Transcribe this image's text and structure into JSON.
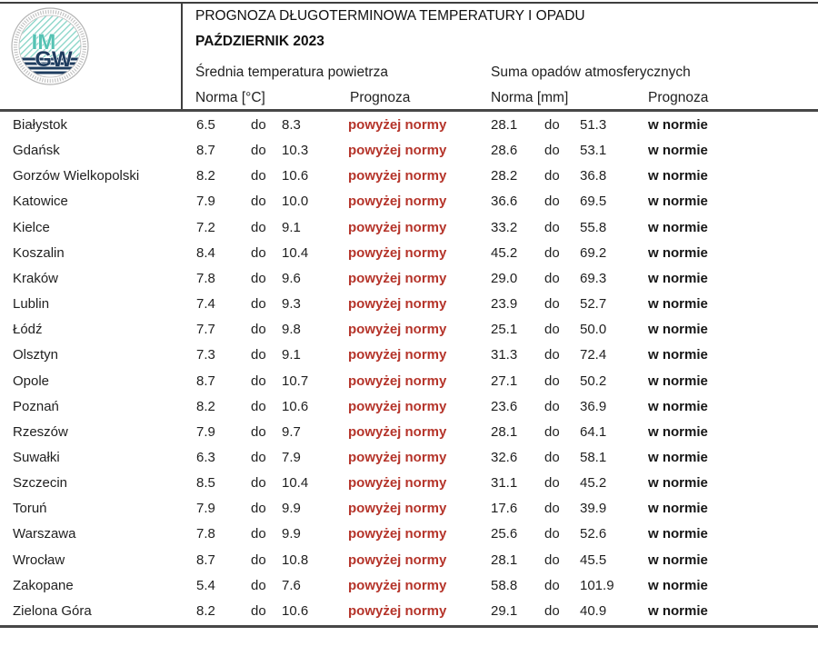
{
  "header": {
    "title": "PROGNOZA DŁUGOTERMINOWA TEMPERATURY I OPADU",
    "month": "PAŹDZIERNIK 2023",
    "temp_section": "Średnia temperatura powietrza",
    "precip_section": "Suma opadów atmosferycznych",
    "temp_norm_label": "Norma [°C]",
    "temp_forecast_label": "Prognoza",
    "precip_norm_label": "Norma [mm]",
    "precip_forecast_label": "Prognoza"
  },
  "logo": {
    "im": "IM",
    "gw": "GW"
  },
  "colors": {
    "forecast_above_red": "#b5342a",
    "text": "#1f1f1f",
    "rule": "#3e3e3e",
    "logo_teal": "#7fd0c2",
    "logo_navy": "#1e3c5f"
  },
  "table": {
    "do_word": "do",
    "rows": [
      {
        "city": "Białystok",
        "t_low": "6.5",
        "t_high": "8.3",
        "t_prog": "powyżej normy",
        "p_low": "28.1",
        "p_high": "51.3",
        "p_prog": "w normie"
      },
      {
        "city": "Gdańsk",
        "t_low": "8.7",
        "t_high": "10.3",
        "t_prog": "powyżej normy",
        "p_low": "28.6",
        "p_high": "53.1",
        "p_prog": "w normie"
      },
      {
        "city": "Gorzów Wielkopolski",
        "t_low": "8.2",
        "t_high": "10.6",
        "t_prog": "powyżej normy",
        "p_low": "28.2",
        "p_high": "36.8",
        "p_prog": "w normie"
      },
      {
        "city": "Katowice",
        "t_low": "7.9",
        "t_high": "10.0",
        "t_prog": "powyżej normy",
        "p_low": "36.6",
        "p_high": "69.5",
        "p_prog": "w normie"
      },
      {
        "city": "Kielce",
        "t_low": "7.2",
        "t_high": "9.1",
        "t_prog": "powyżej normy",
        "p_low": "33.2",
        "p_high": "55.8",
        "p_prog": "w normie"
      },
      {
        "city": "Koszalin",
        "t_low": "8.4",
        "t_high": "10.4",
        "t_prog": "powyżej normy",
        "p_low": "45.2",
        "p_high": "69.2",
        "p_prog": "w normie"
      },
      {
        "city": "Kraków",
        "t_low": "7.8",
        "t_high": "9.6",
        "t_prog": "powyżej normy",
        "p_low": "29.0",
        "p_high": "69.3",
        "p_prog": "w normie"
      },
      {
        "city": "Lublin",
        "t_low": "7.4",
        "t_high": "9.3",
        "t_prog": "powyżej normy",
        "p_low": "23.9",
        "p_high": "52.7",
        "p_prog": "w normie"
      },
      {
        "city": "Łódź",
        "t_low": "7.7",
        "t_high": "9.8",
        "t_prog": "powyżej normy",
        "p_low": "25.1",
        "p_high": "50.0",
        "p_prog": "w normie"
      },
      {
        "city": "Olsztyn",
        "t_low": "7.3",
        "t_high": "9.1",
        "t_prog": "powyżej normy",
        "p_low": "31.3",
        "p_high": "72.4",
        "p_prog": "w normie"
      },
      {
        "city": "Opole",
        "t_low": "8.7",
        "t_high": "10.7",
        "t_prog": "powyżej normy",
        "p_low": "27.1",
        "p_high": "50.2",
        "p_prog": "w normie"
      },
      {
        "city": "Poznań",
        "t_low": "8.2",
        "t_high": "10.6",
        "t_prog": "powyżej normy",
        "p_low": "23.6",
        "p_high": "36.9",
        "p_prog": "w normie"
      },
      {
        "city": "Rzeszów",
        "t_low": "7.9",
        "t_high": "9.7",
        "t_prog": "powyżej normy",
        "p_low": "28.1",
        "p_high": "64.1",
        "p_prog": "w normie"
      },
      {
        "city": "Suwałki",
        "t_low": "6.3",
        "t_high": "7.9",
        "t_prog": "powyżej normy",
        "p_low": "32.6",
        "p_high": "58.1",
        "p_prog": "w normie"
      },
      {
        "city": "Szczecin",
        "t_low": "8.5",
        "t_high": "10.4",
        "t_prog": "powyżej normy",
        "p_low": "31.1",
        "p_high": "45.2",
        "p_prog": "w normie"
      },
      {
        "city": "Toruń",
        "t_low": "7.9",
        "t_high": "9.9",
        "t_prog": "powyżej normy",
        "p_low": "17.6",
        "p_high": "39.9",
        "p_prog": "w normie"
      },
      {
        "city": "Warszawa",
        "t_low": "7.8",
        "t_high": "9.9",
        "t_prog": "powyżej normy",
        "p_low": "25.6",
        "p_high": "52.6",
        "p_prog": "w normie"
      },
      {
        "city": "Wrocław",
        "t_low": "8.7",
        "t_high": "10.8",
        "t_prog": "powyżej normy",
        "p_low": "28.1",
        "p_high": "45.5",
        "p_prog": "w normie"
      },
      {
        "city": "Zakopane",
        "t_low": "5.4",
        "t_high": "7.6",
        "t_prog": "powyżej normy",
        "p_low": "58.8",
        "p_high": "101.9",
        "p_prog": "w normie"
      },
      {
        "city": "Zielona Góra",
        "t_low": "8.2",
        "t_high": "10.6",
        "t_prog": "powyżej normy",
        "p_low": "29.1",
        "p_high": "40.9",
        "p_prog": "w normie"
      }
    ]
  }
}
